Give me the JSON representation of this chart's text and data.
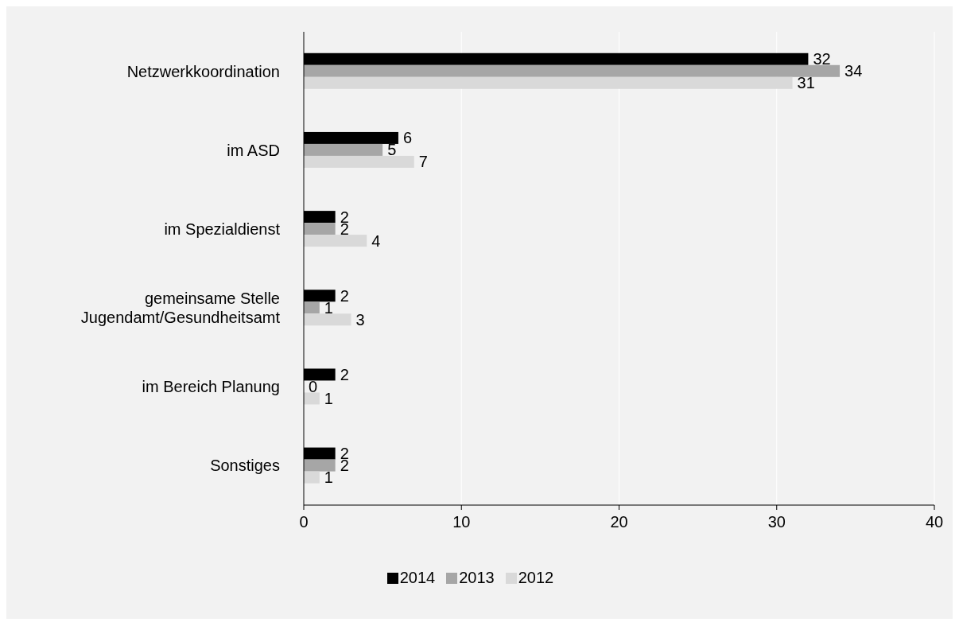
{
  "chart_data": {
    "type": "bar",
    "orientation": "horizontal",
    "categories": [
      "Netzwerkkoordination",
      "im ASD",
      "im Spezialdienst",
      "gemeinsame Stelle Jugendamt/Gesundheitsamt",
      "im Bereich Planung",
      "Sonstiges"
    ],
    "series": [
      {
        "name": "2014",
        "color": "#000000",
        "values": [
          32,
          6,
          2,
          2,
          2,
          2
        ]
      },
      {
        "name": "2013",
        "color": "#a6a6a6",
        "values": [
          34,
          5,
          2,
          1,
          0,
          2
        ]
      },
      {
        "name": "2012",
        "color": "#d9d9d9",
        "values": [
          31,
          7,
          4,
          3,
          1,
          1
        ]
      }
    ],
    "xlim": [
      0,
      40
    ],
    "xticks": [
      0,
      10,
      20,
      30,
      40
    ],
    "grid": "x",
    "legend": "bottom",
    "data_labels": true
  }
}
